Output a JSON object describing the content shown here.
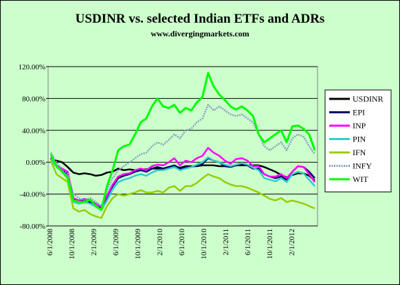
{
  "chart_data": {
    "type": "line",
    "title": "USDINR vs. selected Indian ETFs and ADRs",
    "subtitle": "www.divergingmarkets.com",
    "xlabel": "",
    "ylabel": "",
    "ylim": [
      -0.8,
      1.2
    ],
    "y_ticks": [
      -0.8,
      -0.4,
      0.0,
      0.4,
      0.8,
      1.2
    ],
    "y_tick_labels": [
      "-80.00%",
      "-40.00%",
      "0.00%",
      "40.00%",
      "80.00%",
      "120.00%"
    ],
    "y_format": "percent",
    "x_tick_labels": [
      "6/1/2008",
      "10/1/2008",
      "2/1/2009",
      "6/1/2009",
      "10/1/2009",
      "2/1/2010",
      "6/1/2010",
      "10/1/2010",
      "2/1/2011",
      "6/1/2011",
      "10/1/2011",
      "2/1/2012"
    ],
    "x": [
      "2008-06",
      "2008-07",
      "2008-08",
      "2008-09",
      "2008-10",
      "2008-11",
      "2008-12",
      "2009-01",
      "2009-02",
      "2009-03",
      "2009-04",
      "2009-05",
      "2009-06",
      "2009-07",
      "2009-08",
      "2009-09",
      "2009-10",
      "2009-11",
      "2009-12",
      "2010-01",
      "2010-02",
      "2010-03",
      "2010-04",
      "2010-05",
      "2010-06",
      "2010-07",
      "2010-08",
      "2010-09",
      "2010-10",
      "2010-11",
      "2010-12",
      "2011-01",
      "2011-02",
      "2011-03",
      "2011-04",
      "2011-05",
      "2011-06",
      "2011-07",
      "2011-08",
      "2011-09",
      "2011-10",
      "2011-11",
      "2011-12",
      "2012-01",
      "2012-02",
      "2012-03",
      "2012-04",
      "2012-05"
    ],
    "grid": {
      "horizontal": true,
      "vertical": false
    },
    "legend_position": "right",
    "series": [
      {
        "name": "USDINR",
        "color": "#000000",
        "values": [
          0.02,
          0.02,
          0.0,
          -0.06,
          -0.13,
          -0.15,
          -0.14,
          -0.15,
          -0.17,
          -0.16,
          -0.13,
          -0.12,
          -0.08,
          -0.1,
          -0.09,
          -0.1,
          -0.09,
          -0.09,
          -0.08,
          -0.08,
          -0.08,
          -0.06,
          -0.05,
          -0.07,
          -0.05,
          -0.05,
          -0.05,
          -0.04,
          -0.04,
          -0.04,
          -0.05,
          -0.05,
          -0.05,
          -0.04,
          -0.04,
          -0.04,
          -0.04,
          -0.04,
          -0.06,
          -0.09,
          -0.12,
          -0.16,
          -0.19,
          -0.16,
          -0.14,
          -0.14,
          -0.17,
          -0.23
        ]
      },
      {
        "name": "EPI",
        "color": "#000066",
        "values": [
          0.05,
          -0.05,
          -0.1,
          -0.15,
          -0.45,
          -0.5,
          -0.48,
          -0.5,
          -0.55,
          -0.58,
          -0.45,
          -0.3,
          -0.2,
          -0.17,
          -0.15,
          -0.12,
          -0.1,
          -0.12,
          -0.08,
          -0.06,
          -0.08,
          -0.06,
          -0.04,
          -0.08,
          -0.06,
          -0.06,
          -0.04,
          -0.02,
          0.05,
          0.02,
          0.0,
          -0.05,
          -0.06,
          -0.04,
          -0.02,
          -0.04,
          -0.08,
          -0.08,
          -0.15,
          -0.18,
          -0.2,
          -0.18,
          -0.22,
          -0.12,
          -0.05,
          -0.06,
          -0.12,
          -0.2
        ]
      },
      {
        "name": "INP",
        "color": "#ff00ff",
        "values": [
          0.06,
          -0.04,
          -0.08,
          -0.12,
          -0.45,
          -0.48,
          -0.46,
          -0.48,
          -0.52,
          -0.56,
          -0.42,
          -0.28,
          -0.18,
          -0.15,
          -0.14,
          -0.1,
          -0.08,
          -0.1,
          -0.05,
          -0.03,
          -0.04,
          0.0,
          0.05,
          -0.04,
          0.02,
          0.0,
          0.05,
          0.08,
          0.18,
          0.12,
          0.08,
          0.02,
          -0.02,
          0.04,
          0.05,
          0.02,
          -0.05,
          -0.05,
          -0.15,
          -0.18,
          -0.18,
          -0.15,
          -0.2,
          -0.12,
          -0.05,
          -0.06,
          -0.15,
          -0.25
        ]
      },
      {
        "name": "PIN",
        "color": "#33cccc",
        "values": [
          0.04,
          -0.06,
          -0.12,
          -0.18,
          -0.5,
          -0.52,
          -0.5,
          -0.52,
          -0.56,
          -0.6,
          -0.48,
          -0.34,
          -0.25,
          -0.22,
          -0.2,
          -0.17,
          -0.15,
          -0.17,
          -0.13,
          -0.1,
          -0.1,
          -0.08,
          -0.06,
          -0.1,
          -0.08,
          -0.06,
          -0.03,
          0.0,
          0.06,
          0.02,
          0.0,
          -0.03,
          -0.05,
          -0.03,
          -0.01,
          -0.03,
          -0.07,
          -0.1,
          -0.2,
          -0.22,
          -0.24,
          -0.2,
          -0.25,
          -0.15,
          -0.12,
          -0.14,
          -0.22,
          -0.3
        ]
      },
      {
        "name": "IFN",
        "color": "#99cc00",
        "values": [
          0.02,
          -0.15,
          -0.2,
          -0.25,
          -0.58,
          -0.62,
          -0.6,
          -0.65,
          -0.68,
          -0.7,
          -0.55,
          -0.45,
          -0.4,
          -0.42,
          -0.4,
          -0.38,
          -0.35,
          -0.38,
          -0.38,
          -0.36,
          -0.38,
          -0.32,
          -0.3,
          -0.36,
          -0.3,
          -0.3,
          -0.26,
          -0.2,
          -0.15,
          -0.18,
          -0.2,
          -0.25,
          -0.28,
          -0.3,
          -0.3,
          -0.32,
          -0.35,
          -0.38,
          -0.42,
          -0.46,
          -0.48,
          -0.45,
          -0.5,
          -0.48,
          -0.5,
          -0.52,
          -0.55,
          -0.58
        ]
      },
      {
        "name": "INFY",
        "color": "#7f9fbf",
        "dashed": true,
        "values": [
          0.12,
          0.0,
          -0.1,
          -0.15,
          -0.4,
          -0.45,
          -0.48,
          -0.45,
          -0.5,
          -0.55,
          -0.35,
          -0.2,
          -0.1,
          -0.05,
          0.0,
          0.05,
          0.1,
          0.12,
          0.2,
          0.25,
          0.22,
          0.28,
          0.35,
          0.3,
          0.4,
          0.42,
          0.5,
          0.55,
          0.72,
          0.65,
          0.7,
          0.65,
          0.6,
          0.58,
          0.6,
          0.55,
          0.5,
          0.35,
          0.2,
          0.15,
          0.2,
          0.25,
          0.15,
          0.3,
          0.35,
          0.32,
          0.2,
          0.1
        ]
      },
      {
        "name": "WIT",
        "color": "#00ff00",
        "values": [
          0.1,
          -0.05,
          -0.12,
          -0.2,
          -0.48,
          -0.5,
          -0.5,
          -0.47,
          -0.55,
          -0.6,
          -0.3,
          -0.1,
          0.15,
          0.2,
          0.22,
          0.35,
          0.5,
          0.55,
          0.7,
          0.8,
          0.7,
          0.68,
          0.72,
          0.62,
          0.68,
          0.65,
          0.75,
          0.82,
          1.12,
          0.95,
          0.85,
          0.78,
          0.7,
          0.66,
          0.7,
          0.65,
          0.58,
          0.35,
          0.25,
          0.3,
          0.35,
          0.4,
          0.25,
          0.45,
          0.46,
          0.42,
          0.35,
          0.15
        ]
      }
    ]
  }
}
